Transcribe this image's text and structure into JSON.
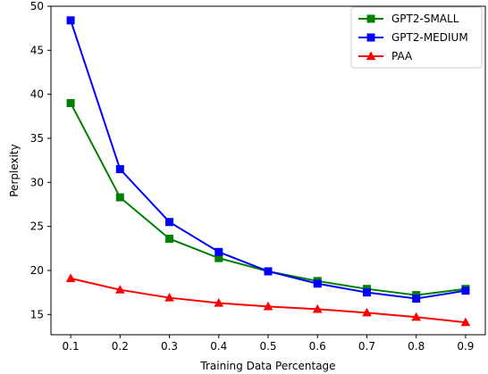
{
  "chart_data": {
    "type": "line",
    "xlabel": "Training Data Percentage",
    "ylabel": "Perplexity",
    "x": [
      0.1,
      0.2,
      0.3,
      0.4,
      0.5,
      0.6,
      0.7,
      0.8,
      0.9
    ],
    "x_ticks": [
      "0.1",
      "0.2",
      "0.3",
      "0.4",
      "0.5",
      "0.6",
      "0.7",
      "0.8",
      "0.9"
    ],
    "y_ticks": [
      "15",
      "20",
      "25",
      "30",
      "35",
      "40",
      "45",
      "50"
    ],
    "xlim": [
      0.06,
      0.94
    ],
    "ylim": [
      12.7,
      50
    ],
    "grid": false,
    "legend_position": "top-right",
    "series": [
      {
        "name": "GPT2-SMALL",
        "color": "#008000",
        "marker": "square",
        "values": [
          39.0,
          28.3,
          23.6,
          21.4,
          19.9,
          18.8,
          17.9,
          17.2,
          17.9
        ]
      },
      {
        "name": "GPT2-MEDIUM",
        "color": "#0000ff",
        "marker": "square",
        "values": [
          48.4,
          31.5,
          25.5,
          22.1,
          19.9,
          18.5,
          17.5,
          16.8,
          17.7
        ]
      },
      {
        "name": "PAA",
        "color": "#ff0000",
        "marker": "triangle",
        "values": [
          19.1,
          17.8,
          16.9,
          16.3,
          15.9,
          15.6,
          15.2,
          14.7,
          14.1
        ]
      }
    ]
  }
}
